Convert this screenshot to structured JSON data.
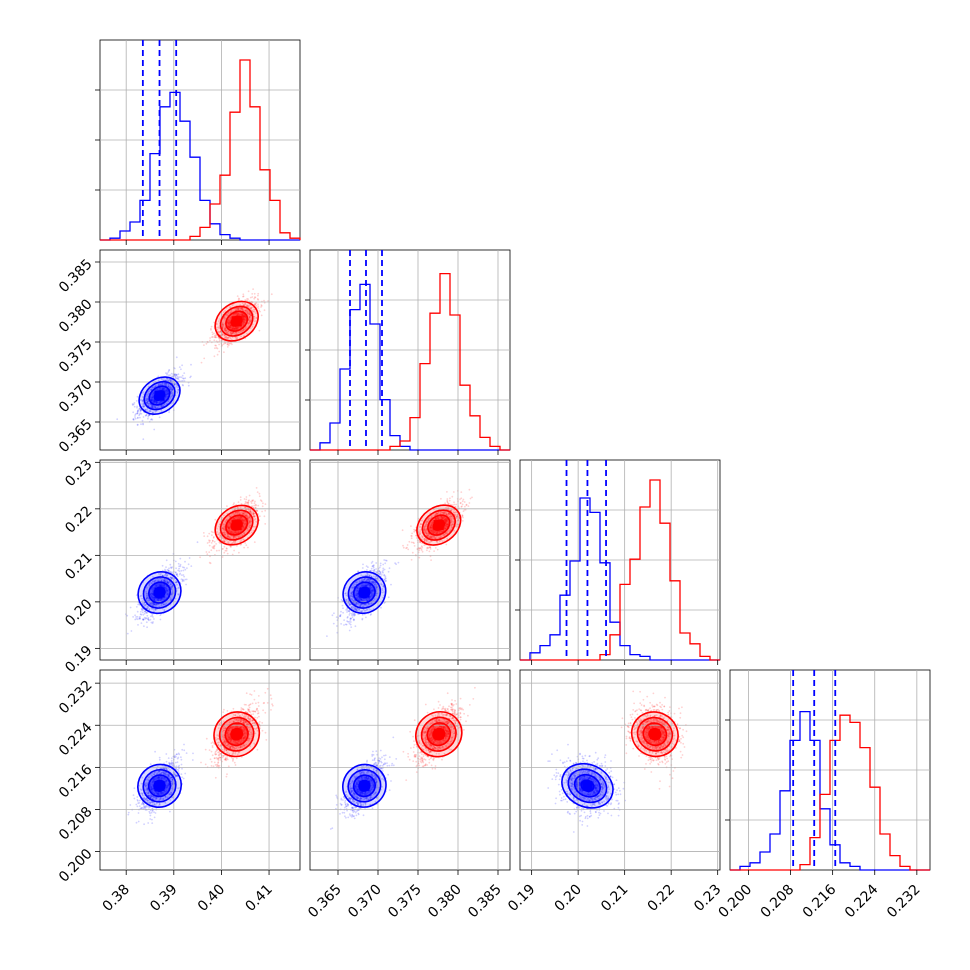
{
  "chart_data": {
    "type": "corner",
    "grid": true,
    "series_colors": [
      "#0000ff",
      "#ff0000"
    ],
    "quantile_color": "#0000ff",
    "parameters": [
      {
        "index": 0,
        "range": [
          0.3745,
          0.4165
        ],
        "ticks": [
          "0.38",
          "0.39",
          "0.40",
          "0.41"
        ],
        "tick_values": [
          0.38,
          0.39,
          0.4,
          0.41
        ],
        "quantiles": [
          0.3835,
          0.387,
          0.3905
        ]
      },
      {
        "index": 1,
        "range": [
          0.3615,
          0.3865
        ],
        "ticks": [
          "0.365",
          "0.370",
          "0.375",
          "0.380",
          "0.385"
        ],
        "tick_values": [
          0.365,
          0.37,
          0.375,
          0.38,
          0.385
        ],
        "quantiles": [
          0.3665,
          0.3685,
          0.3705
        ]
      },
      {
        "index": 2,
        "range": [
          0.1875,
          0.2305
        ],
        "ticks": [
          "0.19",
          "0.20",
          "0.21",
          "0.22",
          "0.23"
        ],
        "tick_values": [
          0.19,
          0.2,
          0.21,
          0.22,
          0.23
        ],
        "quantiles": [
          0.1975,
          0.202,
          0.206
        ]
      },
      {
        "index": 3,
        "range": [
          0.1965,
          0.2345
        ],
        "ticks": [
          "0.200",
          "0.208",
          "0.216",
          "0.224",
          "0.232"
        ],
        "tick_values": [
          0.2,
          0.208,
          0.216,
          0.224,
          0.232
        ],
        "quantiles": [
          0.2085,
          0.2125,
          0.2165
        ]
      }
    ],
    "series": [
      {
        "color": "#0000ff",
        "means": [
          0.387,
          0.3683,
          0.202,
          0.2125
        ],
        "sigmas": [
          0.0022,
          0.0013,
          0.0027,
          0.0025
        ]
      },
      {
        "color": "#ff0000",
        "means": [
          0.4032,
          0.3776,
          0.2165,
          0.2223
        ],
        "sigmas": [
          0.0023,
          0.0014,
          0.0024,
          0.0026
        ]
      }
    ],
    "histograms": [
      {
        "param": 0,
        "bins": [
          0.3745,
          0.4165
        ],
        "blue": [
          0.0,
          0.01,
          0.05,
          0.1,
          0.22,
          0.48,
          0.74,
          0.82,
          0.66,
          0.46,
          0.22,
          0.09,
          0.03,
          0.01,
          0.0,
          0.0,
          0.0,
          0.0,
          0.0,
          0.0
        ],
        "red": [
          0.0,
          0.0,
          0.0,
          0.0,
          0.0,
          0.0,
          0.0,
          0.0,
          0.0,
          0.02,
          0.07,
          0.2,
          0.36,
          0.71,
          1.0,
          0.74,
          0.39,
          0.22,
          0.04,
          0.01
        ]
      },
      {
        "param": 1,
        "bins": [
          0.3615,
          0.3865
        ],
        "blue": [
          0.0,
          0.04,
          0.15,
          0.45,
          0.78,
          0.92,
          0.7,
          0.28,
          0.08,
          0.02,
          0.0,
          0.0,
          0.0,
          0.0,
          0.0,
          0.0,
          0.0,
          0.0,
          0.0,
          0.0
        ],
        "red": [
          0.0,
          0.0,
          0.0,
          0.0,
          0.0,
          0.0,
          0.0,
          0.0,
          0.02,
          0.05,
          0.18,
          0.48,
          0.76,
          0.98,
          0.75,
          0.36,
          0.19,
          0.07,
          0.02,
          0.0
        ]
      },
      {
        "param": 2,
        "bins": [
          0.1875,
          0.2305
        ],
        "blue": [
          0.0,
          0.04,
          0.08,
          0.14,
          0.36,
          0.55,
          0.9,
          0.82,
          0.54,
          0.21,
          0.08,
          0.03,
          0.02,
          0.0,
          0.0,
          0.0,
          0.0,
          0.0,
          0.0,
          0.0
        ],
        "red": [
          0.0,
          0.0,
          0.0,
          0.0,
          0.0,
          0.0,
          0.0,
          0.0,
          0.03,
          0.14,
          0.42,
          0.56,
          0.85,
          1.0,
          0.76,
          0.44,
          0.15,
          0.09,
          0.02,
          0.0
        ]
      },
      {
        "param": 3,
        "bins": [
          0.1965,
          0.2345
        ],
        "blue": [
          0.0,
          0.02,
          0.04,
          0.1,
          0.2,
          0.44,
          0.72,
          0.88,
          0.72,
          0.34,
          0.14,
          0.04,
          0.02,
          0.0,
          0.0,
          0.0,
          0.0,
          0.0,
          0.0,
          0.0
        ],
        "red": [
          0.0,
          0.0,
          0.0,
          0.0,
          0.0,
          0.0,
          0.0,
          0.03,
          0.18,
          0.42,
          0.72,
          0.86,
          0.82,
          0.68,
          0.46,
          0.2,
          0.08,
          0.02,
          0.0,
          0.0
        ]
      }
    ]
  }
}
